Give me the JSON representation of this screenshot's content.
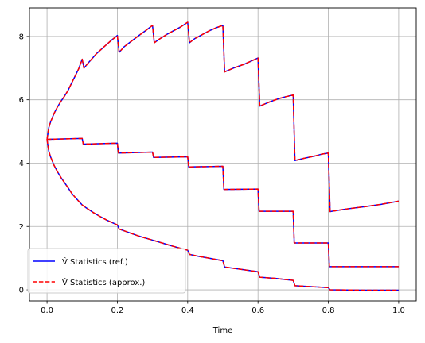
{
  "chart_data": {
    "type": "line",
    "title": "",
    "xlabel": "Time",
    "ylabel": "",
    "xlim": [
      -0.05,
      1.05
    ],
    "ylim": [
      -0.35,
      8.9
    ],
    "xticks": [
      0.0,
      0.2,
      0.4,
      0.6,
      0.8,
      1.0
    ],
    "xtick_labels": [
      "0.0",
      "0.2",
      "0.4",
      "0.6",
      "0.8",
      "1.0"
    ],
    "yticks": [
      0,
      2,
      4,
      6,
      8
    ],
    "ytick_labels": [
      "0",
      "2",
      "4",
      "6",
      "8"
    ],
    "grid": true,
    "legend_position": "lower-left",
    "legend": [
      {
        "label": "V̂ Statistics (ref.)",
        "color": "#0000ff",
        "style": "solid"
      },
      {
        "label": "V̂ Statistics (approx.)",
        "color": "#ff0000",
        "style": "dashed"
      }
    ],
    "series": [
      {
        "role": "upper",
        "points": [
          [
            0.0,
            4.75
          ],
          [
            0.005,
            5.12
          ],
          [
            0.01,
            5.3
          ],
          [
            0.02,
            5.57
          ],
          [
            0.03,
            5.78
          ],
          [
            0.04,
            5.96
          ],
          [
            0.05,
            6.12
          ],
          [
            0.06,
            6.3
          ],
          [
            0.07,
            6.53
          ],
          [
            0.08,
            6.75
          ],
          [
            0.09,
            6.98
          ],
          [
            0.1,
            7.28
          ],
          [
            0.1,
            7.28
          ],
          [
            0.105,
            7.0
          ],
          [
            0.12,
            7.2
          ],
          [
            0.14,
            7.45
          ],
          [
            0.16,
            7.65
          ],
          [
            0.18,
            7.85
          ],
          [
            0.2,
            8.03
          ],
          [
            0.205,
            7.5
          ],
          [
            0.22,
            7.68
          ],
          [
            0.24,
            7.85
          ],
          [
            0.26,
            8.02
          ],
          [
            0.28,
            8.18
          ],
          [
            0.3,
            8.35
          ],
          [
            0.305,
            7.8
          ],
          [
            0.32,
            7.92
          ],
          [
            0.34,
            8.06
          ],
          [
            0.36,
            8.18
          ],
          [
            0.38,
            8.3
          ],
          [
            0.4,
            8.45
          ],
          [
            0.405,
            7.8
          ],
          [
            0.42,
            7.93
          ],
          [
            0.44,
            8.05
          ],
          [
            0.46,
            8.17
          ],
          [
            0.48,
            8.27
          ],
          [
            0.5,
            8.35
          ],
          [
            0.505,
            6.88
          ],
          [
            0.53,
            7.0
          ],
          [
            0.56,
            7.12
          ],
          [
            0.58,
            7.22
          ],
          [
            0.6,
            7.32
          ],
          [
            0.605,
            5.8
          ],
          [
            0.63,
            5.92
          ],
          [
            0.66,
            6.04
          ],
          [
            0.68,
            6.1
          ],
          [
            0.7,
            6.15
          ],
          [
            0.705,
            4.08
          ],
          [
            0.73,
            4.15
          ],
          [
            0.76,
            4.22
          ],
          [
            0.78,
            4.28
          ],
          [
            0.8,
            4.32
          ],
          [
            0.805,
            2.47
          ],
          [
            0.85,
            2.55
          ],
          [
            0.9,
            2.62
          ],
          [
            0.95,
            2.7
          ],
          [
            1.0,
            2.8
          ]
        ]
      },
      {
        "role": "middle",
        "points": [
          [
            0.0,
            4.75
          ],
          [
            0.1,
            4.78
          ],
          [
            0.1,
            4.78
          ],
          [
            0.103,
            4.6
          ],
          [
            0.2,
            4.63
          ],
          [
            0.203,
            4.32
          ],
          [
            0.3,
            4.35
          ],
          [
            0.303,
            4.18
          ],
          [
            0.4,
            4.2
          ],
          [
            0.403,
            3.88
          ],
          [
            0.5,
            3.9
          ],
          [
            0.503,
            3.17
          ],
          [
            0.6,
            3.18
          ],
          [
            0.603,
            2.48
          ],
          [
            0.7,
            2.48
          ],
          [
            0.703,
            1.48
          ],
          [
            0.8,
            1.48
          ],
          [
            0.803,
            0.73
          ],
          [
            1.0,
            0.73
          ]
        ]
      },
      {
        "role": "lower",
        "points": [
          [
            0.0,
            4.75
          ],
          [
            0.005,
            4.38
          ],
          [
            0.01,
            4.2
          ],
          [
            0.02,
            3.93
          ],
          [
            0.03,
            3.72
          ],
          [
            0.04,
            3.54
          ],
          [
            0.05,
            3.38
          ],
          [
            0.06,
            3.22
          ],
          [
            0.07,
            3.05
          ],
          [
            0.08,
            2.92
          ],
          [
            0.09,
            2.8
          ],
          [
            0.1,
            2.68
          ],
          [
            0.11,
            2.6
          ],
          [
            0.13,
            2.45
          ],
          [
            0.15,
            2.32
          ],
          [
            0.17,
            2.2
          ],
          [
            0.2,
            2.05
          ],
          [
            0.205,
            1.92
          ],
          [
            0.23,
            1.82
          ],
          [
            0.26,
            1.7
          ],
          [
            0.3,
            1.57
          ],
          [
            0.33,
            1.47
          ],
          [
            0.36,
            1.37
          ],
          [
            0.4,
            1.25
          ],
          [
            0.405,
            1.12
          ],
          [
            0.43,
            1.06
          ],
          [
            0.46,
            1.0
          ],
          [
            0.5,
            0.92
          ],
          [
            0.505,
            0.72
          ],
          [
            0.55,
            0.65
          ],
          [
            0.6,
            0.57
          ],
          [
            0.605,
            0.4
          ],
          [
            0.65,
            0.36
          ],
          [
            0.7,
            0.3
          ],
          [
            0.705,
            0.13
          ],
          [
            0.75,
            0.1
          ],
          [
            0.8,
            0.07
          ],
          [
            0.805,
            0.0
          ],
          [
            0.9,
            -0.01
          ],
          [
            1.0,
            -0.01
          ]
        ]
      }
    ]
  }
}
